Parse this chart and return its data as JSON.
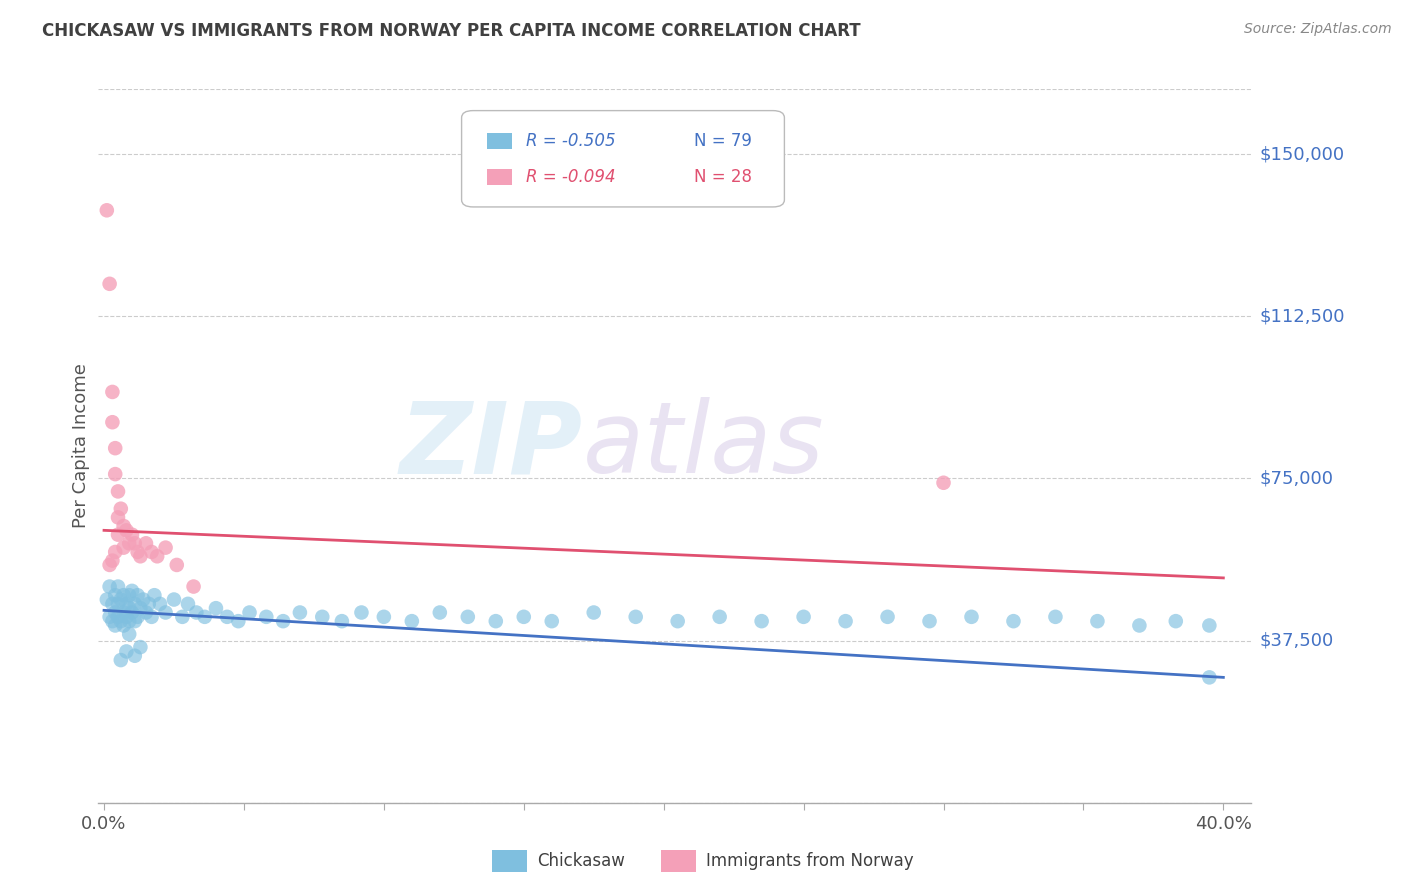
{
  "title": "CHICKASAW VS IMMIGRANTS FROM NORWAY PER CAPITA INCOME CORRELATION CHART",
  "source": "Source: ZipAtlas.com",
  "ylabel": "Per Capita Income",
  "yticks": [
    0,
    37500,
    75000,
    112500,
    150000
  ],
  "ytick_labels": [
    "",
    "$37,500",
    "$75,000",
    "$112,500",
    "$150,000"
  ],
  "ylim": [
    0,
    165000
  ],
  "xlim": [
    -0.002,
    0.41
  ],
  "xtick_positions": [
    0.0,
    0.05,
    0.1,
    0.15,
    0.2,
    0.25,
    0.3,
    0.35,
    0.4
  ],
  "xtick_labels": [
    "0.0%",
    "",
    "",
    "",
    "",
    "",
    "",
    "",
    "40.0%"
  ],
  "legend_r1": "R = -0.505",
  "legend_n1": "N = 79",
  "legend_r2": "R = -0.094",
  "legend_n2": "N = 28",
  "color_blue": "#7fbfdf",
  "color_pink": "#f4a0b8",
  "color_blue_line": "#4472c4",
  "color_pink_line": "#e05070",
  "color_title": "#404040",
  "color_ytick": "#4472c4",
  "color_source": "#888888",
  "bottom_label1": "Chickasaw",
  "bottom_label2": "Immigrants from Norway",
  "chickasaw_x": [
    0.001,
    0.002,
    0.002,
    0.003,
    0.003,
    0.004,
    0.004,
    0.004,
    0.005,
    0.005,
    0.005,
    0.006,
    0.006,
    0.007,
    0.007,
    0.007,
    0.008,
    0.008,
    0.009,
    0.009,
    0.009,
    0.01,
    0.01,
    0.011,
    0.011,
    0.012,
    0.012,
    0.013,
    0.014,
    0.015,
    0.016,
    0.017,
    0.018,
    0.02,
    0.022,
    0.025,
    0.028,
    0.03,
    0.033,
    0.036,
    0.04,
    0.044,
    0.048,
    0.052,
    0.058,
    0.064,
    0.07,
    0.078,
    0.085,
    0.092,
    0.1,
    0.11,
    0.12,
    0.13,
    0.14,
    0.15,
    0.16,
    0.175,
    0.19,
    0.205,
    0.22,
    0.235,
    0.25,
    0.265,
    0.28,
    0.295,
    0.31,
    0.325,
    0.34,
    0.355,
    0.37,
    0.383,
    0.395,
    0.395,
    0.009,
    0.011,
    0.013,
    0.008,
    0.006
  ],
  "chickasaw_y": [
    47000,
    50000,
    43000,
    46000,
    42000,
    48000,
    44000,
    41000,
    50000,
    46000,
    43000,
    47000,
    42000,
    48000,
    44000,
    41000,
    46000,
    43000,
    48000,
    45000,
    42000,
    49000,
    44000,
    46000,
    42000,
    48000,
    43000,
    45000,
    47000,
    44000,
    46000,
    43000,
    48000,
    46000,
    44000,
    47000,
    43000,
    46000,
    44000,
    43000,
    45000,
    43000,
    42000,
    44000,
    43000,
    42000,
    44000,
    43000,
    42000,
    44000,
    43000,
    42000,
    44000,
    43000,
    42000,
    43000,
    42000,
    44000,
    43000,
    42000,
    43000,
    42000,
    43000,
    42000,
    43000,
    42000,
    43000,
    42000,
    43000,
    42000,
    41000,
    42000,
    41000,
    29000,
    39000,
    34000,
    36000,
    35000,
    33000
  ],
  "norway_x": [
    0.001,
    0.002,
    0.003,
    0.003,
    0.004,
    0.004,
    0.005,
    0.005,
    0.006,
    0.007,
    0.007,
    0.008,
    0.009,
    0.01,
    0.011,
    0.012,
    0.013,
    0.015,
    0.017,
    0.019,
    0.022,
    0.026,
    0.032,
    0.3,
    0.005,
    0.004,
    0.003,
    0.002
  ],
  "norway_y": [
    137000,
    120000,
    95000,
    88000,
    82000,
    76000,
    72000,
    66000,
    68000,
    64000,
    59000,
    63000,
    60000,
    62000,
    60000,
    58000,
    57000,
    60000,
    58000,
    57000,
    59000,
    55000,
    50000,
    74000,
    62000,
    58000,
    56000,
    55000
  ],
  "blue_line_x": [
    0.0,
    0.4
  ],
  "blue_line_y": [
    44500,
    29000
  ],
  "pink_line_x": [
    0.0,
    0.4
  ],
  "pink_line_y": [
    63000,
    52000
  ]
}
